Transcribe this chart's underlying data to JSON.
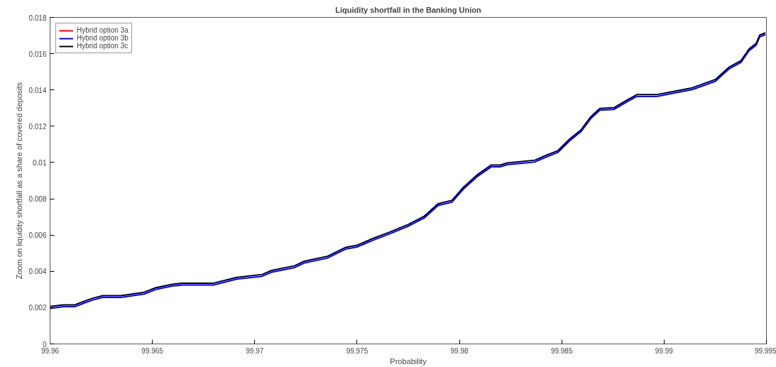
{
  "chart_data": {
    "type": "line",
    "title": "Liquidity shortfall in the Banking Union",
    "xlabel": "Probability",
    "ylabel": "Zoom on liquidity shortfall as a share of covered deposits",
    "x": [
      99.96,
      99.96065,
      99.96121,
      99.96178,
      99.96212,
      99.96257,
      99.96347,
      99.9646,
      99.96517,
      99.96596,
      99.96652,
      99.96799,
      99.96912,
      99.97037,
      99.97082,
      99.97195,
      99.97242,
      99.97353,
      99.97443,
      99.975,
      99.97579,
      99.97658,
      99.97749,
      99.97828,
      99.97896,
      99.97964,
      99.9802,
      99.98088,
      99.98155,
      99.982,
      99.98234,
      99.98369,
      99.98414,
      99.98482,
      99.98539,
      99.98595,
      99.98641,
      99.98686,
      99.98754,
      99.98821,
      99.98867,
      99.98963,
      99.99025,
      99.99138,
      99.99251,
      99.99319,
      99.99376,
      99.99415,
      99.9945,
      99.99467,
      99.99495
    ],
    "series": [
      {
        "name": "Hybrid option 3a",
        "color": "#ff0000",
        "values": [
          null,
          null,
          null,
          null,
          null,
          null,
          null,
          null,
          null,
          null,
          null,
          null,
          null,
          null,
          null,
          null,
          null,
          null,
          null,
          null,
          null,
          null,
          null,
          null,
          null,
          null,
          null,
          null,
          null,
          null,
          null,
          null,
          null,
          null,
          null,
          null,
          null,
          null,
          null,
          null,
          null,
          null,
          null,
          null,
          null,
          null,
          null,
          null,
          null,
          null,
          null
        ]
      },
      {
        "name": "Hybrid option 3b",
        "color": "#0000ff",
        "values": [
          0.00196,
          0.00205,
          0.00205,
          0.0023,
          0.00243,
          0.00256,
          0.00256,
          0.00275,
          0.003,
          0.00319,
          0.00325,
          0.00325,
          0.00357,
          0.00373,
          0.00395,
          0.00421,
          0.00446,
          0.00472,
          0.00522,
          0.00534,
          0.00572,
          0.00606,
          0.00648,
          0.00694,
          0.00763,
          0.00782,
          0.00854,
          0.00923,
          0.00976,
          0.00976,
          0.00988,
          0.01003,
          0.01025,
          0.01056,
          0.0112,
          0.01171,
          0.01241,
          0.01288,
          0.01292,
          0.01336,
          0.01364,
          0.01364,
          0.01377,
          0.01402,
          0.01448,
          0.01517,
          0.01552,
          0.01616,
          0.01647,
          0.01692,
          0.01705
        ]
      },
      {
        "name": "Hybrid option 3c",
        "color": "#000000",
        "values": [
          0.00206,
          0.00215,
          0.00215,
          0.0024,
          0.00253,
          0.00266,
          0.00266,
          0.00285,
          0.0031,
          0.00329,
          0.00335,
          0.00335,
          0.00367,
          0.00383,
          0.00405,
          0.00431,
          0.00456,
          0.00482,
          0.00532,
          0.00544,
          0.00582,
          0.00616,
          0.00658,
          0.00704,
          0.00773,
          0.00792,
          0.00864,
          0.00933,
          0.00986,
          0.00986,
          0.00998,
          0.01013,
          0.01035,
          0.01066,
          0.0113,
          0.01181,
          0.01251,
          0.01298,
          0.01302,
          0.01346,
          0.01374,
          0.01374,
          0.01387,
          0.01412,
          0.01458,
          0.01527,
          0.01562,
          0.01626,
          0.01657,
          0.01702,
          0.01715
        ]
      }
    ],
    "xlim": [
      99.96,
      99.995
    ],
    "xticks": [
      99.96,
      99.965,
      99.97,
      99.975,
      99.98,
      99.985,
      99.99,
      99.995
    ],
    "ylim": [
      0,
      0.018
    ],
    "yticks": [
      0,
      0.002,
      0.004,
      0.006,
      0.008,
      0.01,
      0.012,
      0.014,
      0.016,
      0.018
    ],
    "grid": false,
    "legend": "top left",
    "marker": "none",
    "line_style": "solid"
  }
}
